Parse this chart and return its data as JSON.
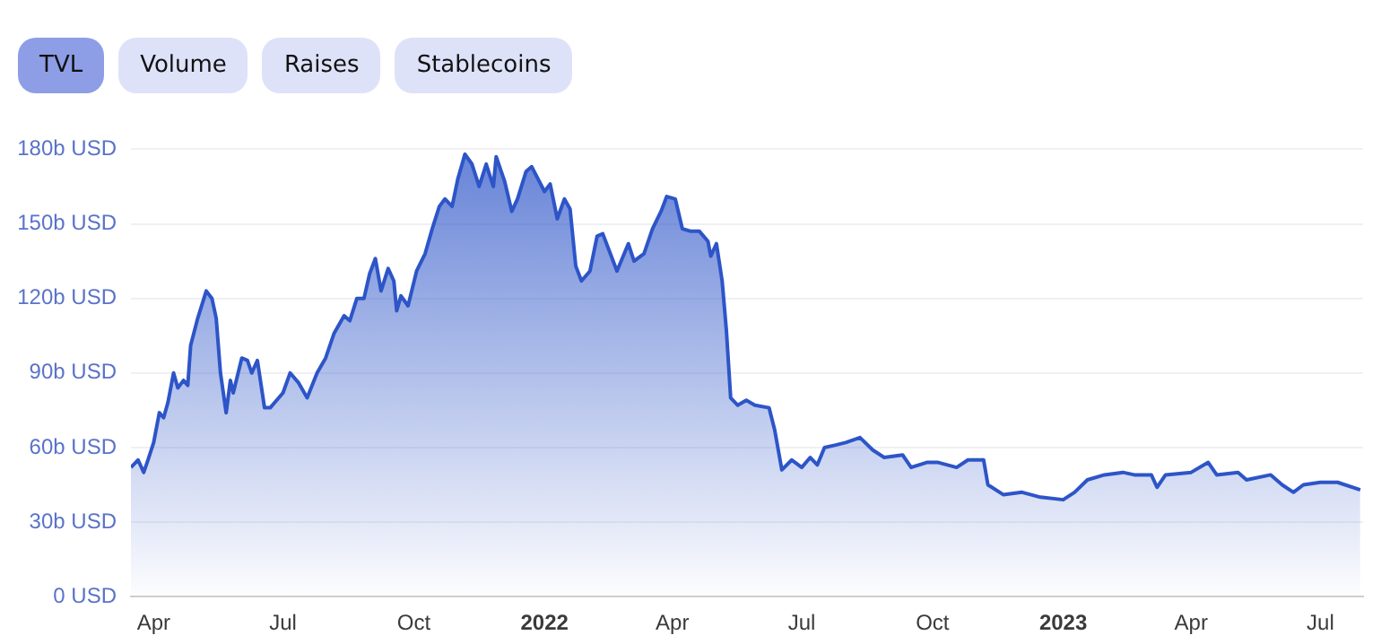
{
  "chart_data": {
    "type": "area",
    "annotations": [
      "TVL",
      "Volume",
      "Raises",
      "Stablecoins"
    ],
    "x": [
      "2021-03-16",
      "2021-03-21",
      "2021-03-25",
      "2021-03-28",
      "2021-04-01",
      "2021-04-05",
      "2021-04-08",
      "2021-04-11",
      "2021-04-15",
      "2021-04-18",
      "2021-04-22",
      "2021-04-25",
      "2021-04-27",
      "2021-05-02",
      "2021-05-08",
      "2021-05-12",
      "2021-05-15",
      "2021-05-18",
      "2021-05-22",
      "2021-05-25",
      "2021-05-27",
      "2021-06-02",
      "2021-06-06",
      "2021-06-09",
      "2021-06-13",
      "2021-06-18",
      "2021-06-22",
      "2021-07-01",
      "2021-07-06",
      "2021-07-12",
      "2021-07-18",
      "2021-07-25",
      "2021-07-31",
      "2021-08-06",
      "2021-08-13",
      "2021-08-17",
      "2021-08-22",
      "2021-08-27",
      "2021-08-31",
      "2021-09-04",
      "2021-09-08",
      "2021-09-13",
      "2021-09-17",
      "2021-09-19",
      "2021-09-22",
      "2021-09-27",
      "2021-10-03",
      "2021-10-09",
      "2021-10-14",
      "2021-10-19",
      "2021-10-23",
      "2021-10-28",
      "2021-11-01",
      "2021-11-06",
      "2021-11-11",
      "2021-11-16",
      "2021-11-21",
      "2021-11-26",
      "2021-11-28",
      "2021-12-04",
      "2021-12-09",
      "2021-12-13",
      "2021-12-19",
      "2021-12-23",
      "2022-01-01",
      "2022-01-05",
      "2022-01-10",
      "2022-01-15",
      "2022-01-19",
      "2022-01-23",
      "2022-01-27",
      "2022-02-02",
      "2022-02-07",
      "2022-02-11",
      "2022-02-15",
      "2022-02-21",
      "2022-03-01",
      "2022-03-05",
      "2022-03-12",
      "2022-03-18",
      "2022-03-24",
      "2022-03-28",
      "2022-04-03",
      "2022-04-08",
      "2022-04-14",
      "2022-04-20",
      "2022-04-26",
      "2022-04-28",
      "2022-05-02",
      "2022-05-06",
      "2022-05-09",
      "2022-05-12",
      "2022-05-17",
      "2022-05-23",
      "2022-05-29",
      "2022-06-08",
      "2022-06-12",
      "2022-06-17",
      "2022-06-24",
      "2022-07-01",
      "2022-07-07",
      "2022-07-12",
      "2022-07-17",
      "2022-07-25",
      "2022-08-01",
      "2022-08-11",
      "2022-08-20",
      "2022-08-28",
      "2022-09-10",
      "2022-09-16",
      "2022-09-27",
      "2022-10-05",
      "2022-10-18",
      "2022-10-26",
      "2022-11-06",
      "2022-11-09",
      "2022-11-20",
      "2022-12-03",
      "2022-12-16",
      "2023-01-01",
      "2023-01-09",
      "2023-01-18",
      "2023-01-30",
      "2023-02-12",
      "2023-02-20",
      "2023-03-04",
      "2023-03-08",
      "2023-03-14",
      "2023-04-01",
      "2023-04-13",
      "2023-04-19",
      "2023-05-04",
      "2023-05-10",
      "2023-05-27",
      "2023-06-04",
      "2023-06-12",
      "2023-06-19",
      "2023-07-01",
      "2023-07-13",
      "2023-07-29"
    ],
    "series": [
      {
        "color": "#2d55c8",
        "values": [
          52,
          55,
          50,
          55,
          62,
          74,
          72,
          78,
          90,
          84,
          87,
          85,
          101,
          112,
          123,
          120,
          112,
          90,
          74,
          87,
          82,
          96,
          95,
          90,
          95,
          76,
          76,
          82,
          90,
          86,
          80,
          90,
          96,
          106,
          113,
          111,
          120,
          120,
          130,
          136,
          123,
          132,
          127,
          115,
          121,
          117,
          131,
          138,
          148,
          157,
          160,
          157,
          168,
          178,
          174,
          165,
          174,
          165,
          177,
          167,
          155,
          160,
          171,
          173,
          163,
          166,
          152,
          160,
          156,
          133,
          127,
          131,
          145,
          146,
          140,
          131,
          142,
          135,
          138,
          148,
          155,
          161,
          160,
          148,
          147,
          147,
          143,
          137,
          142,
          127,
          107,
          80,
          77,
          79,
          77,
          76,
          67,
          51,
          55,
          52,
          56,
          53,
          60,
          61,
          62,
          64,
          59,
          56,
          57,
          52,
          54,
          54,
          52,
          55,
          55,
          45,
          41,
          42,
          40,
          39,
          42,
          47,
          49,
          50,
          49,
          49,
          44,
          49,
          50,
          54,
          49,
          50,
          47,
          49,
          45,
          42,
          45,
          46,
          46,
          43
        ]
      }
    ],
    "xlim": [
      "2021-03-16",
      "2023-07-31"
    ],
    "xticks": [
      {
        "value": "2021-04-01",
        "label": "Apr"
      },
      {
        "value": "2021-07-01",
        "label": "Jul"
      },
      {
        "value": "2021-10-01",
        "label": "Oct"
      },
      {
        "value": "2022-01-01",
        "label": "2022"
      },
      {
        "value": "2022-04-01",
        "label": "Apr"
      },
      {
        "value": "2022-07-01",
        "label": "Jul"
      },
      {
        "value": "2022-10-01",
        "label": "Oct"
      },
      {
        "value": "2023-01-01",
        "label": "2023"
      },
      {
        "value": "2023-04-01",
        "label": "Apr"
      },
      {
        "value": "2023-07-01",
        "label": "Jul"
      }
    ],
    "ylim": [
      0,
      180
    ],
    "yticks": [
      {
        "value": 0,
        "label": "0 USD"
      },
      {
        "value": 30,
        "label": "30b USD"
      },
      {
        "value": 60,
        "label": "60b USD"
      },
      {
        "value": 90,
        "label": "90b USD"
      },
      {
        "value": 120,
        "label": "120b USD"
      },
      {
        "value": 150,
        "label": "150b USD"
      },
      {
        "value": 180,
        "label": "180b USD"
      }
    ],
    "grid": "y",
    "legend": false,
    "marker": "none",
    "line_style": "solid"
  }
}
